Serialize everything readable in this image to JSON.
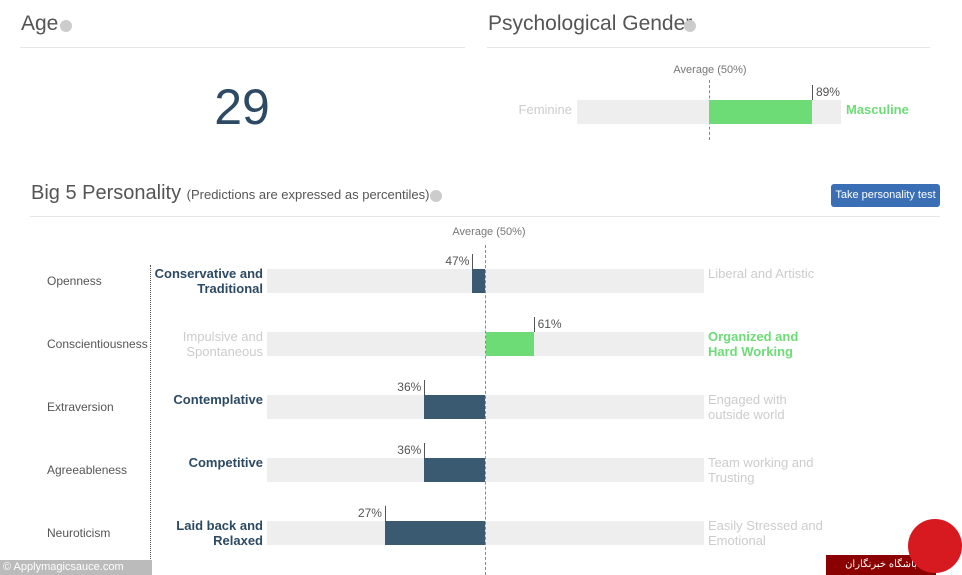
{
  "age": {
    "title": "Age",
    "value": 29
  },
  "gender": {
    "title": "Psychological Gender",
    "average_label": "Average (50%)",
    "left_label": "Feminine",
    "right_label": "Masculine",
    "value": 89,
    "value_label": "89%"
  },
  "big5": {
    "title": "Big 5 Personality",
    "subtitle": "(Predictions are expressed as percentiles)",
    "button": "Take personality test",
    "average_label": "Average (50%)",
    "traits": [
      {
        "name": "Openness",
        "left": "Conservative and Traditional",
        "right": "Liberal and Artistic",
        "value": 47,
        "value_label": "47%"
      },
      {
        "name": "Conscientiousness",
        "left": "Impulsive and Spontaneous",
        "right": "Organized and Hard Working",
        "value": 61,
        "value_label": "61%"
      },
      {
        "name": "Extraversion",
        "left": "Contemplative",
        "right": "Engaged with outside world",
        "value": 36,
        "value_label": "36%"
      },
      {
        "name": "Agreeableness",
        "left": "Competitive",
        "right": "Team working and Trusting",
        "value": 36,
        "value_label": "36%"
      },
      {
        "name": "Neuroticism",
        "left": "Laid back and Relaxed",
        "right": "Easily Stressed and Emotional",
        "value": 27,
        "value_label": "27%"
      }
    ]
  },
  "watermark": "© Applymagicsauce.com",
  "logo_text": "باشگاه خبرنگاران"
}
